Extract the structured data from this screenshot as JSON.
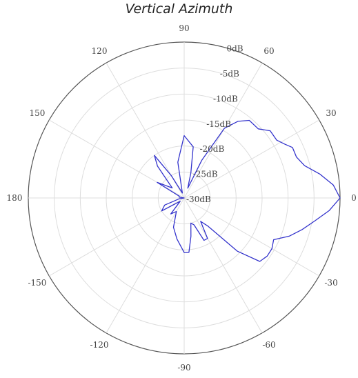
{
  "chart_data": {
    "type": "polar",
    "title": "Vertical Azimuth",
    "angle_ticks": [
      "0",
      "30",
      "60",
      "90",
      "120",
      "150",
      "180",
      "-150",
      "-120",
      "-90",
      "-60",
      "-30"
    ],
    "radial_ticks": [
      "0dB",
      "-5dB",
      "-10dB",
      "-15dB",
      "-20dB",
      "-25dB",
      "-30dB"
    ],
    "r_range_db": [
      -30,
      0
    ],
    "grid": true,
    "series": [
      {
        "color": "#3333cc",
        "angle_deg": [
          0,
          5,
          10,
          15,
          20,
          25,
          28,
          32,
          38,
          43,
          50,
          55,
          60,
          65,
          70,
          75,
          80,
          90,
          100,
          110,
          120,
          125,
          130,
          140,
          150,
          160,
          170,
          180,
          190,
          200,
          210,
          220,
          230,
          240,
          250,
          260,
          270,
          275,
          280,
          285,
          290,
          295,
          300,
          305,
          310,
          315,
          320,
          325,
          330,
          335,
          340,
          345,
          350,
          355,
          360
        ],
        "gain_db": [
          0,
          -1.2,
          -3.5,
          -6,
          -7,
          -7,
          -8,
          -9,
          -9,
          -10.5,
          -10.5,
          -12,
          -14.5,
          -22,
          -28,
          -25,
          -20,
          -18,
          -23,
          -29,
          -25,
          -20,
          -22,
          -27,
          -24,
          -29,
          -29,
          -30,
          -29,
          -26,
          -25,
          -29,
          -26,
          -27,
          -24,
          -22,
          -19.5,
          -19.5,
          -22.5,
          -25,
          -24.5,
          -21,
          -21,
          -24.5,
          -23,
          -15.5,
          -11,
          -10.5,
          -10.5,
          -11,
          -8.5,
          -6.5,
          -4.5,
          -2,
          0
        ]
      }
    ]
  }
}
